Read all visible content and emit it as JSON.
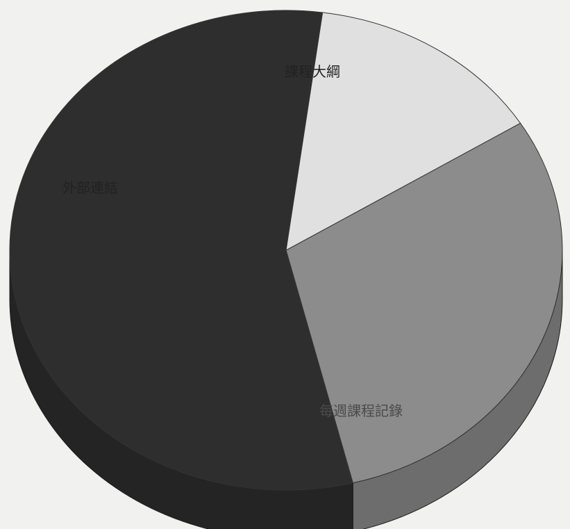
{
  "chart_data": {
    "type": "pie",
    "style": "3d",
    "title": "",
    "legend": "none",
    "slices": [
      {
        "label": "課程大綱",
        "value": 30,
        "color": "#8c8c8c"
      },
      {
        "label": "每週課程記錄",
        "value": 56,
        "color": "#2e2e2f"
      },
      {
        "label": "外部連結",
        "value": 14,
        "color": "#e0e0e0"
      }
    ]
  }
}
